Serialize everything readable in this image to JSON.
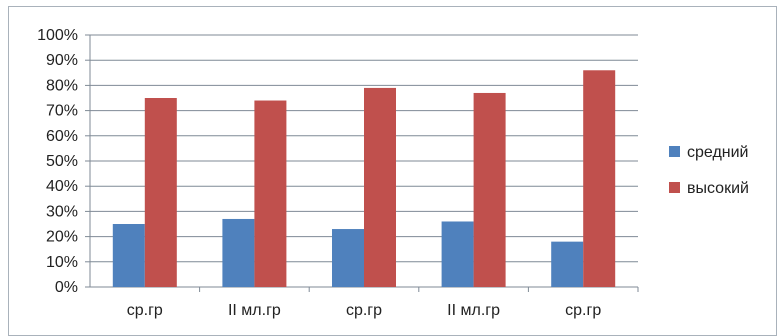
{
  "chart_data": {
    "type": "bar",
    "categories": [
      "ср.гр",
      "II мл.гр",
      "ср.гр",
      "II мл.гр",
      "ср.гр"
    ],
    "series": [
      {
        "name": "средний",
        "values": [
          25,
          27,
          23,
          26,
          18
        ],
        "color": "#4f81bd"
      },
      {
        "name": "высокий",
        "values": [
          75,
          74,
          79,
          77,
          86
        ],
        "color": "#c0504d"
      }
    ],
    "ylim": [
      0,
      100
    ],
    "yticks": [
      0,
      10,
      20,
      30,
      40,
      50,
      60,
      70,
      80,
      90,
      100
    ],
    "ytick_labels": [
      "0%",
      "10%",
      "20%",
      "30%",
      "40%",
      "50%",
      "60%",
      "70%",
      "80%",
      "90%",
      "100%"
    ],
    "grid": true,
    "legend_position": "right"
  }
}
